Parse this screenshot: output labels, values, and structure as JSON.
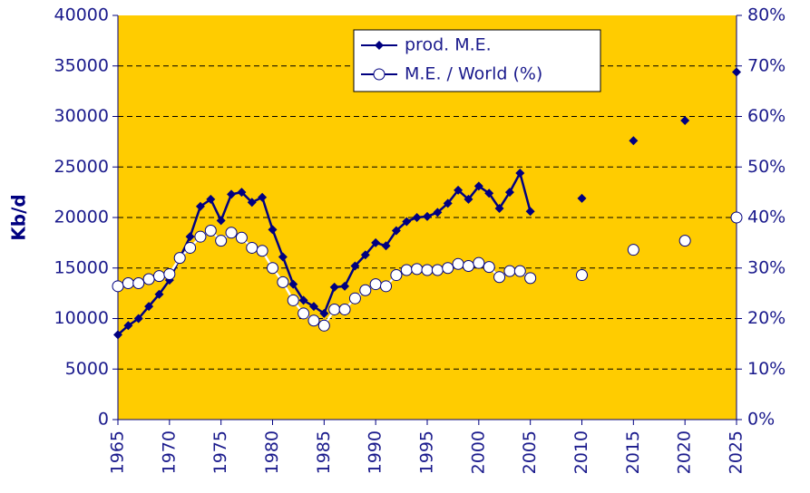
{
  "chart_data": {
    "type": "line",
    "y_label": "Kb/d",
    "x": [
      1965,
      1966,
      1967,
      1968,
      1969,
      1970,
      1971,
      1972,
      1973,
      1974,
      1975,
      1976,
      1977,
      1978,
      1979,
      1980,
      1981,
      1982,
      1983,
      1984,
      1985,
      1986,
      1987,
      1988,
      1989,
      1990,
      1991,
      1992,
      1993,
      1994,
      1995,
      1996,
      1997,
      1998,
      1999,
      2000,
      2001,
      2002,
      2003,
      2004,
      2005,
      2006,
      2007,
      2008,
      2009,
      2010,
      2011,
      2012,
      2013,
      2014,
      2015,
      2016,
      2017,
      2018,
      2019,
      2020,
      2021,
      2022,
      2023,
      2024,
      2025
    ],
    "series": [
      {
        "name": "prod. M.E.",
        "color": "#000080",
        "axis": "y",
        "values": [
          8400,
          9300,
          10000,
          11200,
          12400,
          13800,
          16000,
          18100,
          21100,
          21800,
          19700,
          22300,
          22500,
          21500,
          22000,
          18800,
          16100,
          13400,
          11800,
          11200,
          10500,
          13100,
          13200,
          15200,
          16300,
          17500,
          17200,
          18700,
          19600,
          20000,
          20100,
          20500,
          21400,
          22700,
          21800,
          23100,
          22400,
          20900,
          22500,
          24400,
          20600,
          null,
          null,
          null,
          null,
          21900,
          null,
          null,
          null,
          null,
          27600,
          null,
          null,
          null,
          null,
          29600,
          null,
          null,
          null,
          null,
          34400
        ]
      },
      {
        "name": "M.E. / World (%)",
        "color": "#ffffff",
        "axis": "y2",
        "values": [
          26.4,
          27,
          27,
          27.8,
          28.4,
          28.8,
          32,
          34,
          36.2,
          37.4,
          35.4,
          37,
          36,
          34,
          33.4,
          30,
          27.2,
          23.6,
          21,
          19.6,
          18.6,
          21.8,
          21.8,
          24,
          25.6,
          26.8,
          26.4,
          28.6,
          29.6,
          29.8,
          29.6,
          29.6,
          30,
          30.8,
          30.4,
          31,
          30.2,
          28.2,
          29.4,
          29.4,
          28,
          null,
          null,
          null,
          null,
          28.6,
          null,
          null,
          null,
          null,
          33.6,
          null,
          null,
          null,
          null,
          35.4,
          null,
          null,
          null,
          null,
          40
        ]
      }
    ],
    "xlim": [
      1965,
      2025
    ],
    "xticks": [
      1965,
      1970,
      1975,
      1980,
      1985,
      1990,
      1995,
      2000,
      2005,
      2010,
      2015,
      2020,
      2025
    ],
    "ylim": [
      0,
      40000
    ],
    "yticks": [
      0,
      5000,
      10000,
      15000,
      20000,
      25000,
      30000,
      35000,
      40000
    ],
    "y2lim": [
      0,
      80
    ],
    "y2ticks": [
      {
        "value": 0,
        "label": "0%"
      },
      {
        "value": 10,
        "label": "10%"
      },
      {
        "value": 20,
        "label": "20%"
      },
      {
        "value": 30,
        "label": "30%"
      },
      {
        "value": 40,
        "label": "40%"
      },
      {
        "value": 50,
        "label": "50%"
      },
      {
        "value": 60,
        "label": "60%"
      },
      {
        "value": 70,
        "label": "70%"
      },
      {
        "value": 80,
        "label": "80%"
      }
    ],
    "grid": true,
    "plot_background": "#ffcc00",
    "axis_color": "#000080",
    "legend": "top"
  }
}
